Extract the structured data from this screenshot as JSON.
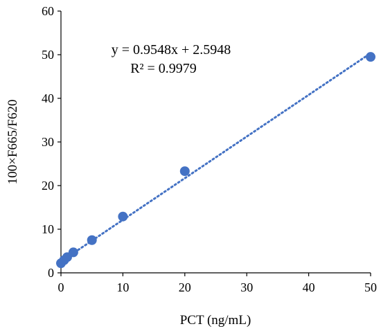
{
  "chart_data": {
    "type": "scatter",
    "title": "",
    "xlabel": "PCT (ng/mL)",
    "ylabel": "100×F665/F620",
    "xlim": [
      0,
      50
    ],
    "ylim": [
      0,
      60
    ],
    "xticks": [
      0,
      10,
      20,
      30,
      40,
      50
    ],
    "yticks": [
      0,
      10,
      20,
      30,
      40,
      50,
      60
    ],
    "grid": false,
    "legend": "none",
    "points": [
      {
        "x": 0,
        "y": 2.2
      },
      {
        "x": 0.5,
        "y": 2.9
      },
      {
        "x": 1,
        "y": 3.6
      },
      {
        "x": 2,
        "y": 4.7
      },
      {
        "x": 5,
        "y": 7.5
      },
      {
        "x": 10,
        "y": 12.9
      },
      {
        "x": 20,
        "y": 23.3
      },
      {
        "x": 50,
        "y": 49.5
      }
    ],
    "trendline": {
      "type": "linear",
      "slope": 0.9548,
      "intercept": 2.5948,
      "style": "dotted",
      "x_range": [
        0,
        50
      ]
    },
    "annotations": {
      "equation": "y = 0.9548x + 2.5948",
      "r_squared": "R² = 0.9979"
    },
    "colors": {
      "marker": "#4472C4",
      "trendline": "#4472C4",
      "axis": "#000000"
    }
  }
}
